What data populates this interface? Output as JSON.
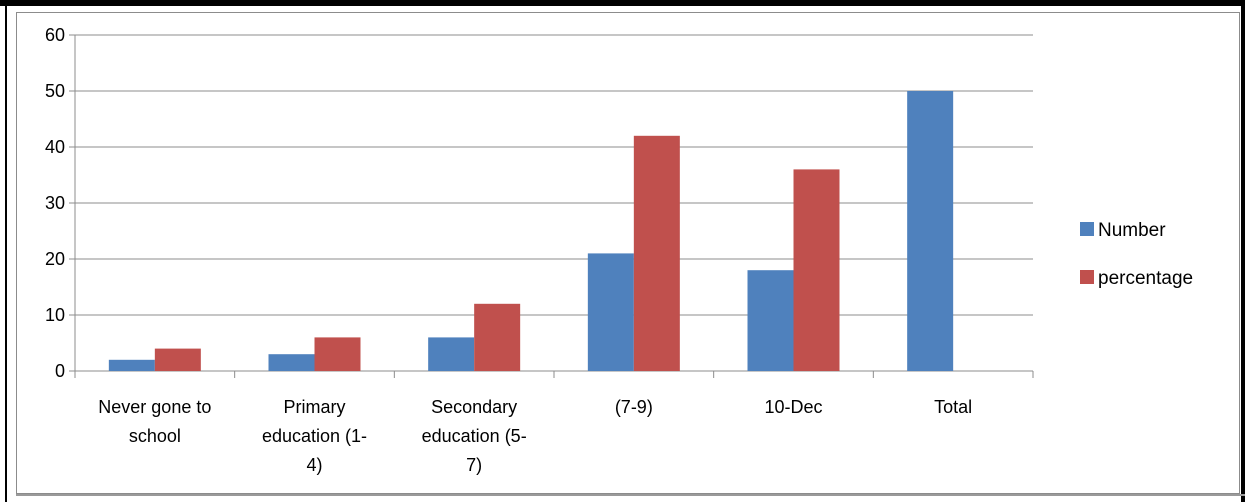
{
  "chart_data": {
    "type": "bar",
    "categories": [
      [
        "Never gone to",
        "school"
      ],
      [
        "Primary",
        "education (1-",
        "4)"
      ],
      [
        "Secondary",
        "education (5-",
        "7)"
      ],
      [
        "(7-9)"
      ],
      [
        "10-Dec"
      ],
      [
        "Total"
      ]
    ],
    "series": [
      {
        "name": "Number",
        "color": "#4f81bd",
        "values": [
          2,
          3,
          6,
          21,
          18,
          50
        ]
      },
      {
        "name": "percentage",
        "color": "#c0504d",
        "values": [
          4,
          6,
          12,
          42,
          36,
          null
        ]
      }
    ],
    "ylim": [
      0,
      60
    ],
    "yticks": [
      0,
      10,
      20,
      30,
      40,
      50,
      60
    ],
    "grid": true,
    "legend_position": "right",
    "title": "",
    "xlabel": "",
    "ylabel": ""
  }
}
